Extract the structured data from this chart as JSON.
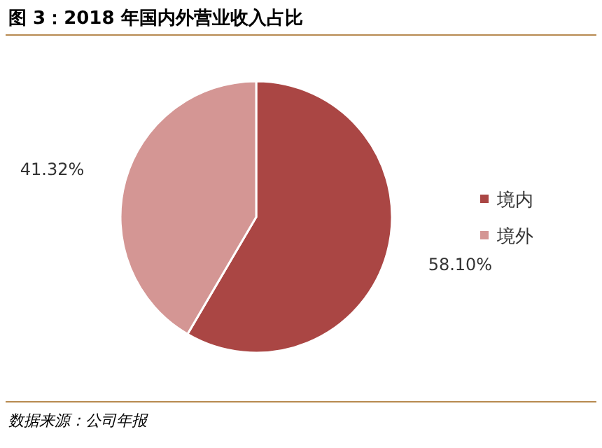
{
  "chart_data": {
    "type": "pie",
    "title": "图 3：2018 年国内外营业收入占比",
    "categories": [
      "境内",
      "境外"
    ],
    "values": [
      58.1,
      41.32
    ],
    "value_labels": [
      "58.10%",
      "41.32%"
    ],
    "colors": [
      "#aa4644",
      "#d49694"
    ],
    "legend": "right",
    "annotations": [
      "数据来源：公司年报"
    ]
  }
}
